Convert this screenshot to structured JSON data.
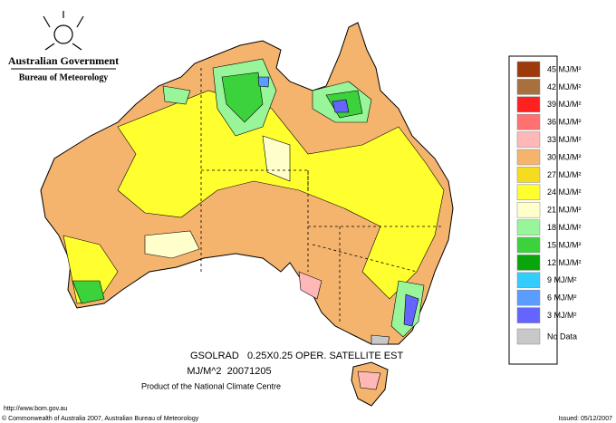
{
  "header": {
    "government": "Australian Government",
    "agency": "Bureau of Meteorology"
  },
  "map": {
    "product": "GSOLRAD   0.25X0.25 OPER. SATELLITE EST",
    "units_date": "MJ/M^2  20071205",
    "producer": "Product of the National Climate Centre"
  },
  "legend": {
    "items": [
      {
        "label": "45 MJ/M²",
        "color": "#9c3a0c"
      },
      {
        "label": "42 MJ/M²",
        "color": "#a8703f"
      },
      {
        "label": "39 MJ/M²",
        "color": "#ff2020"
      },
      {
        "label": "36 MJ/M²",
        "color": "#ff7070"
      },
      {
        "label": "33 MJ/M²",
        "color": "#ffb8b8"
      },
      {
        "label": "30 MJ/M²",
        "color": "#f5b46e"
      },
      {
        "label": "27 MJ/M²",
        "color": "#f5dc1e"
      },
      {
        "label": "24 MJ/M²",
        "color": "#ffff30"
      },
      {
        "label": "21 MJ/M²",
        "color": "#ffffcc"
      },
      {
        "label": "18 MJ/M²",
        "color": "#99f599"
      },
      {
        "label": "15 MJ/M²",
        "color": "#3cd23c"
      },
      {
        "label": "12 MJ/M²",
        "color": "#0aa50a"
      },
      {
        "label": "9 MJ/M²",
        "color": "#33ccff"
      },
      {
        "label": "6 MJ/M²",
        "color": "#5a9cff"
      },
      {
        "label": "3 MJ/M²",
        "color": "#6464ff"
      }
    ],
    "no_data": {
      "label": "No Data",
      "color": "#c8c8c8"
    }
  },
  "footer": {
    "url": "http://www.bom.gov.au",
    "copyright": "© Commonwealth of Australia 2007, Australian Bureau of Meteorology",
    "issued": "Issued: 05/12/2007"
  }
}
